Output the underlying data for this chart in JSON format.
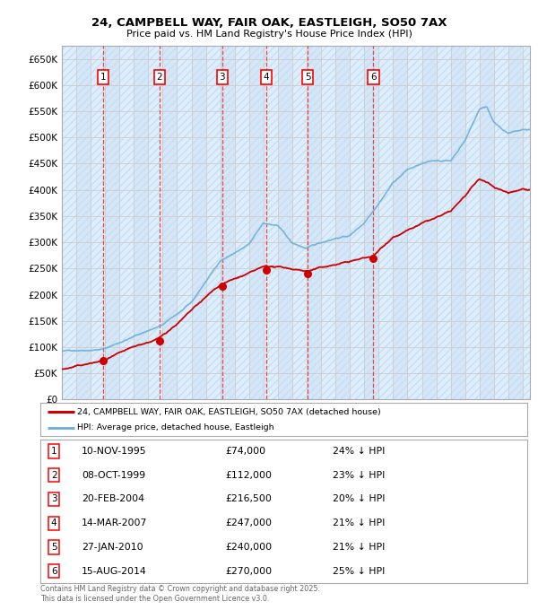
{
  "title_line1": "24, CAMPBELL WAY, FAIR OAK, EASTLEIGH, SO50 7AX",
  "title_line2": "Price paid vs. HM Land Registry's House Price Index (HPI)",
  "ylabel_ticks": [
    "£0",
    "£50K",
    "£100K",
    "£150K",
    "£200K",
    "£250K",
    "£300K",
    "£350K",
    "£400K",
    "£450K",
    "£500K",
    "£550K",
    "£600K",
    "£650K"
  ],
  "ytick_vals": [
    0,
    50000,
    100000,
    150000,
    200000,
    250000,
    300000,
    350000,
    400000,
    450000,
    500000,
    550000,
    600000,
    650000
  ],
  "ylim": [
    0,
    675000
  ],
  "xlim_start": 1993.0,
  "xlim_end": 2025.5,
  "hpi_color": "#6baed6",
  "price_color": "#cc0000",
  "bg_color": "#ddeeff",
  "sale_dates": [
    1995.86,
    1999.77,
    2004.13,
    2007.2,
    2010.07,
    2014.63
  ],
  "sale_prices": [
    74000,
    112000,
    216500,
    247000,
    240000,
    270000
  ],
  "sale_labels": [
    "1",
    "2",
    "3",
    "4",
    "5",
    "6"
  ],
  "legend_label_price": "24, CAMPBELL WAY, FAIR OAK, EASTLEIGH, SO50 7AX (detached house)",
  "legend_label_hpi": "HPI: Average price, detached house, Eastleigh",
  "table_rows": [
    [
      "1",
      "10-NOV-1995",
      "£74,000",
      "24% ↓ HPI"
    ],
    [
      "2",
      "08-OCT-1999",
      "£112,000",
      "23% ↓ HPI"
    ],
    [
      "3",
      "20-FEB-2004",
      "£216,500",
      "20% ↓ HPI"
    ],
    [
      "4",
      "14-MAR-2007",
      "£247,000",
      "21% ↓ HPI"
    ],
    [
      "5",
      "27-JAN-2010",
      "£240,000",
      "21% ↓ HPI"
    ],
    [
      "6",
      "15-AUG-2014",
      "£270,000",
      "25% ↓ HPI"
    ]
  ],
  "footnote": "Contains HM Land Registry data © Crown copyright and database right 2025.\nThis data is licensed under the Open Government Licence v3.0.",
  "grid_color": "#bbbbbb",
  "vline_color": "#ee3333",
  "hpi_waypoints_x": [
    1993,
    1995,
    1996,
    1999,
    2000,
    2002,
    2004,
    2005,
    2006,
    2007,
    2008,
    2009,
    2010,
    2011,
    2012,
    2013,
    2014,
    2015,
    2016,
    2017,
    2018,
    2019,
    2020,
    2021,
    2022,
    2022.5,
    2023,
    2024,
    2025
  ],
  "hpi_waypoints_y": [
    92000,
    97000,
    100000,
    135000,
    145000,
    185000,
    265000,
    280000,
    295000,
    335000,
    330000,
    295000,
    285000,
    295000,
    305000,
    310000,
    335000,
    375000,
    415000,
    440000,
    450000,
    455000,
    455000,
    495000,
    555000,
    560000,
    530000,
    510000,
    515000
  ],
  "price_waypoints_x": [
    1993,
    1995.86,
    1999.77,
    2004.13,
    2007.2,
    2010.07,
    2014.63,
    2016,
    2018,
    2020,
    2021,
    2022,
    2023,
    2024,
    2025
  ],
  "price_waypoints_y": [
    58000,
    74000,
    112000,
    216500,
    247000,
    240000,
    270000,
    310000,
    335000,
    355000,
    385000,
    415000,
    400000,
    390000,
    400000
  ]
}
